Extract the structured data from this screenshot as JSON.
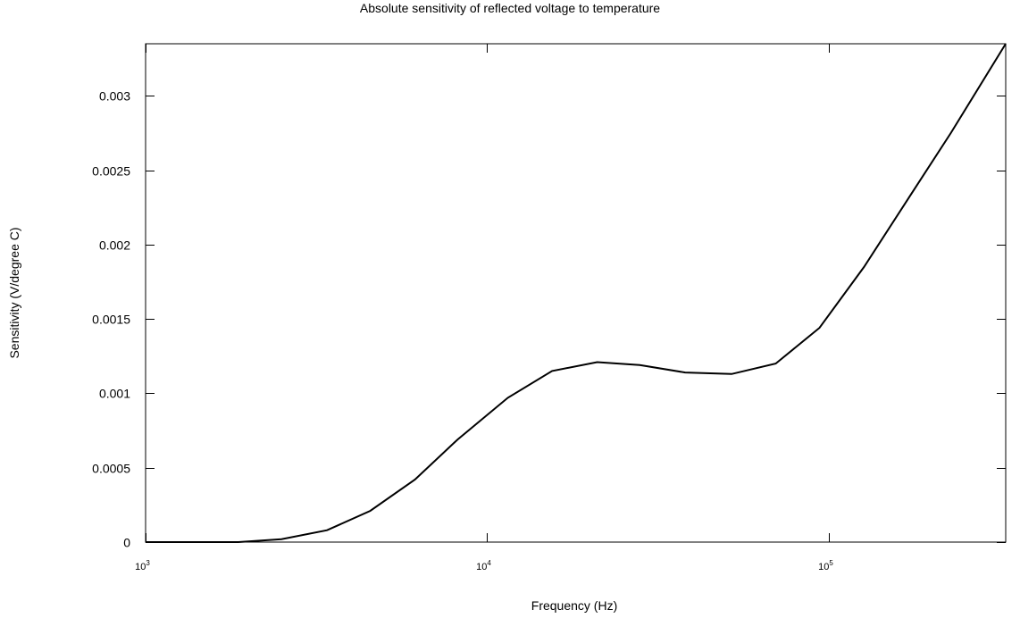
{
  "chart_data": {
    "type": "line",
    "title": "Absolute sensitivity of reflected voltage to temperature",
    "xlabel": "Frequency (Hz)",
    "ylabel": "Sensitivity (V/degree C)",
    "x_scale": "log",
    "xlim": [
      1000,
      330000
    ],
    "ylim": [
      0,
      0.00335
    ],
    "x_ticks": [
      {
        "value": 1000,
        "base": "10",
        "exp": "3"
      },
      {
        "value": 10000,
        "base": "10",
        "exp": "4"
      },
      {
        "value": 100000,
        "base": "10",
        "exp": "5"
      }
    ],
    "y_ticks": [
      "0",
      "0.0005",
      "0.001",
      "0.0015",
      "0.002",
      "0.0025",
      "0.003"
    ],
    "grid": false,
    "series": [
      {
        "x": [
          1000,
          1400,
          1870,
          2500,
          3400,
          4550,
          6150,
          8200,
          11500,
          15500,
          21000,
          28000,
          38000,
          52000,
          70000,
          94000,
          127000,
          170000,
          228000,
          330000
        ],
        "y": [
          0,
          0,
          0,
          2e-05,
          8e-05,
          0.00021,
          0.00042,
          0.00069,
          0.00097,
          0.00115,
          0.00121,
          0.00119,
          0.00114,
          0.00113,
          0.0012,
          0.00144,
          0.00185,
          0.0023,
          0.00275,
          0.00335
        ]
      }
    ]
  }
}
